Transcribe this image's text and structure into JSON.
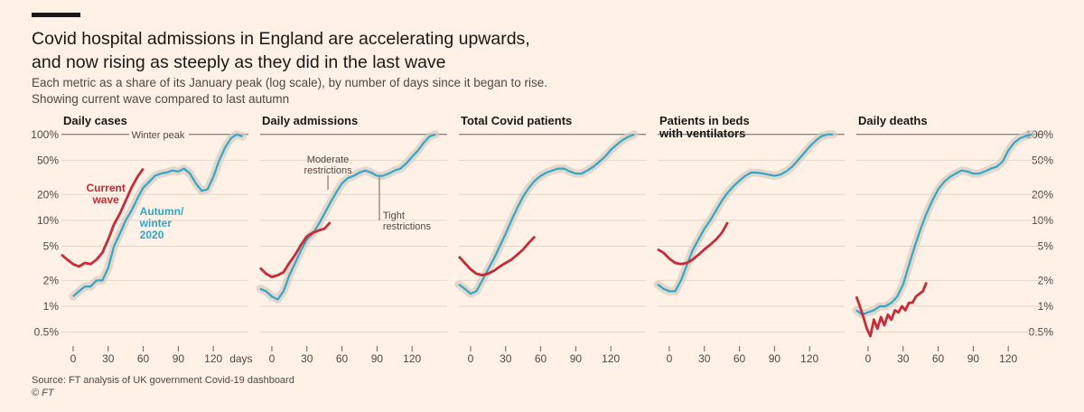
{
  "title_line1": "Covid hospital admissions in England are accelerating upwards,",
  "title_line2": "and now rising as steeply as they did in the last wave",
  "subtitle_line1": "Each metric as a share of its January peak (log scale), by number of days since it began to rise.",
  "subtitle_line2": "Showing current wave compared to last autumn",
  "source": "Source: FT analysis of UK government Covid-19 dashboard",
  "copyright": "© FT",
  "colors": {
    "background": "#fff1e5",
    "current_wave": "#cc2936",
    "autumn_winter_2020": "#2fa8c8",
    "band": "#d7cbc0",
    "grid": "#e2d6cb",
    "axis": "#66605c"
  },
  "chart_data": {
    "type": "line",
    "y_scale": "log",
    "y_ticks": [
      0.5,
      1,
      2,
      5,
      10,
      20,
      50,
      100
    ],
    "y_tick_labels_left": [
      "0.5%",
      "1%",
      "2%",
      "5%",
      "10%",
      "20%",
      "50%",
      "100%"
    ],
    "y_tick_labels_right": [
      "0.5%",
      "1%",
      "2%",
      "5%",
      "10%",
      "20%",
      "50%",
      "100%"
    ],
    "ylim": [
      0.38,
      115
    ],
    "xlim": [
      -10,
      150
    ],
    "x_ticks": [
      0,
      30,
      60,
      90,
      120
    ],
    "x_tick_labels": [
      "0",
      "30",
      "60",
      "90",
      "120"
    ],
    "x_unit_label": "days",
    "annotations": {
      "winter_peak": "Winter peak",
      "current_wave": [
        "Current",
        "wave"
      ],
      "autumn_winter": [
        "Autumn/",
        "winter",
        "2020"
      ],
      "moderate": [
        "Moderate",
        "restrictions"
      ],
      "tight": [
        "Tight",
        "restrictions"
      ]
    },
    "panels": [
      {
        "title": [
          "Daily cases"
        ],
        "series": [
          {
            "name": "Current wave",
            "x": [
              -10,
              -5,
              0,
              5,
              10,
              15,
              20,
              25,
              30,
              35,
              40,
              45,
              50,
              55,
              60
            ],
            "y": [
              4,
              3.5,
              3.1,
              2.9,
              3.2,
              3.1,
              3.5,
              4.2,
              6,
              9,
              12,
              17,
              24,
              32,
              40
            ]
          },
          {
            "name": "Autumn/winter 2020",
            "x": [
              0,
              5,
              10,
              15,
              20,
              25,
              30,
              35,
              40,
              45,
              50,
              55,
              60,
              65,
              70,
              75,
              80,
              85,
              90,
              95,
              100,
              105,
              110,
              115,
              120,
              125,
              130,
              135,
              140,
              145
            ],
            "y": [
              1.3,
              1.5,
              1.7,
              1.7,
              2,
              2,
              2.8,
              5,
              7,
              10,
              13,
              18,
              24,
              28,
              33,
              35,
              36,
              38,
              37,
              40,
              35,
              27,
              22,
              23,
              32,
              50,
              70,
              90,
              100,
              95
            ]
          }
        ]
      },
      {
        "title": [
          "Daily admissions"
        ],
        "series": [
          {
            "name": "Current wave",
            "x": [
              -10,
              -5,
              0,
              5,
              10,
              15,
              20,
              25,
              30,
              35,
              40,
              45,
              50
            ],
            "y": [
              2.8,
              2.4,
              2.2,
              2.3,
              2.5,
              3.2,
              4,
              5.2,
              6.5,
              7.2,
              7.6,
              8,
              9.5
            ]
          },
          {
            "name": "Autumn/winter 2020",
            "x": [
              -10,
              -5,
              0,
              5,
              10,
              15,
              20,
              25,
              30,
              35,
              40,
              45,
              50,
              55,
              60,
              65,
              70,
              75,
              80,
              85,
              90,
              95,
              100,
              105,
              110,
              115,
              120,
              125,
              130,
              135,
              140
            ],
            "y": [
              1.6,
              1.5,
              1.3,
              1.2,
              1.5,
              2.3,
              3.2,
              4.5,
              6,
              7,
              9,
              12,
              16,
              21,
              27,
              31,
              33,
              36,
              38,
              36,
              33,
              33,
              35,
              38,
              40,
              46,
              55,
              65,
              80,
              95,
              100
            ]
          }
        ]
      },
      {
        "title": [
          "Total Covid patients"
        ],
        "series": [
          {
            "name": "Current wave",
            "x": [
              -10,
              -5,
              0,
              5,
              10,
              15,
              20,
              25,
              30,
              35,
              40,
              45,
              50,
              55
            ],
            "y": [
              3.8,
              3.2,
              2.7,
              2.4,
              2.3,
              2.4,
              2.6,
              2.9,
              3.2,
              3.5,
              4,
              4.6,
              5.5,
              6.5
            ]
          },
          {
            "name": "Autumn/winter 2020",
            "x": [
              -10,
              -5,
              0,
              5,
              10,
              15,
              20,
              25,
              30,
              35,
              40,
              45,
              50,
              55,
              60,
              65,
              70,
              75,
              80,
              85,
              90,
              95,
              100,
              105,
              110,
              115,
              120,
              125,
              130,
              135,
              140
            ],
            "y": [
              1.8,
              1.6,
              1.4,
              1.5,
              2,
              2.7,
              3.6,
              5,
              7,
              10,
              14,
              19,
              24,
              29,
              33,
              36,
              38,
              40,
              40,
              37,
              35,
              35,
              38,
              42,
              48,
              55,
              66,
              76,
              86,
              94,
              100
            ]
          }
        ]
      },
      {
        "title": [
          "Patients in beds",
          "with ventilators"
        ],
        "series": [
          {
            "name": "Current wave",
            "x": [
              -10,
              -5,
              0,
              5,
              10,
              15,
              20,
              25,
              30,
              35,
              40,
              45,
              50
            ],
            "y": [
              4.6,
              4.2,
              3.6,
              3.2,
              3.1,
              3.2,
              3.5,
              4,
              4.6,
              5.2,
              6,
              7.2,
              9.5
            ]
          },
          {
            "name": "Autumn/winter 2020",
            "x": [
              -10,
              -5,
              0,
              5,
              10,
              15,
              20,
              25,
              30,
              35,
              40,
              45,
              50,
              55,
              60,
              65,
              70,
              75,
              80,
              85,
              90,
              95,
              100,
              105,
              110,
              115,
              120,
              125,
              130,
              135,
              140
            ],
            "y": [
              1.8,
              1.6,
              1.5,
              1.5,
              2,
              3,
              4.5,
              6,
              8,
              10,
              13,
              17,
              21,
              25,
              29,
              33,
              36,
              36,
              35,
              34,
              33,
              34,
              37,
              42,
              50,
              60,
              72,
              84,
              95,
              100,
              100
            ]
          }
        ]
      },
      {
        "title": [
          "Daily deaths"
        ],
        "series": [
          {
            "name": "Current wave",
            "x": [
              -10,
              -7,
              -4,
              -1,
              2,
              5,
              8,
              11,
              14,
              17,
              20,
              23,
              26,
              29,
              32,
              35,
              38,
              41,
              44,
              47,
              50
            ],
            "y": [
              1.3,
              1,
              0.75,
              0.55,
              0.45,
              0.7,
              0.55,
              0.75,
              0.6,
              0.8,
              0.7,
              0.9,
              0.85,
              1,
              0.9,
              1.1,
              1.1,
              1.3,
              1.4,
              1.5,
              1.9
            ]
          },
          {
            "name": "Autumn/winter 2020",
            "x": [
              -10,
              -5,
              0,
              5,
              10,
              15,
              20,
              25,
              30,
              35,
              40,
              45,
              50,
              55,
              60,
              65,
              70,
              75,
              80,
              85,
              90,
              95,
              100,
              105,
              110,
              115,
              120,
              125,
              130,
              135,
              140
            ],
            "y": [
              0.9,
              0.8,
              0.85,
              0.9,
              1,
              1,
              1.1,
              1.3,
              1.8,
              3,
              5,
              8,
              12,
              17,
              23,
              28,
              32,
              35,
              38,
              37,
              35,
              35,
              37,
              40,
              42,
              48,
              65,
              80,
              90,
              96,
              100
            ]
          }
        ]
      }
    ]
  }
}
